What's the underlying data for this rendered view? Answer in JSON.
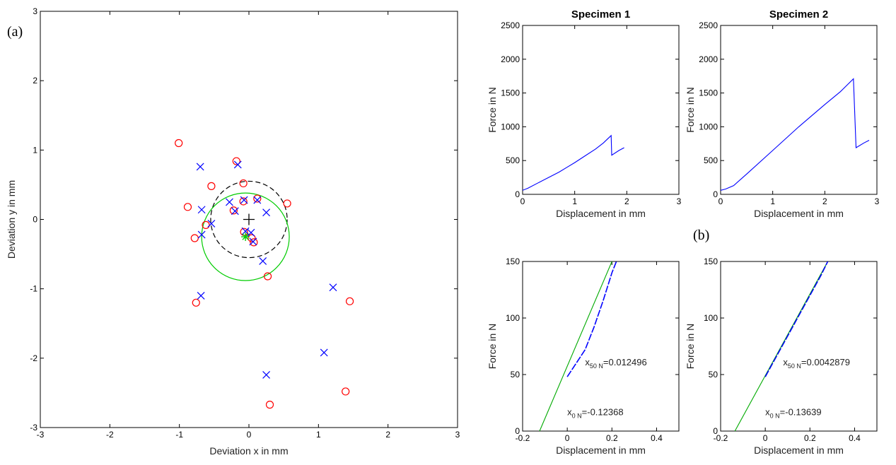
{
  "figure": {
    "panel_a_label": "(a)",
    "panel_b_label": "(b)"
  },
  "chart_data": [
    {
      "id": "deviation",
      "type": "scatter",
      "title": "",
      "xlabel": "Deviation x in mm",
      "ylabel": "Deviation y in mm",
      "xlim": [
        -3,
        3
      ],
      "ylim": [
        -3,
        3
      ],
      "xticks": [
        -3,
        -2,
        -1,
        0,
        1,
        2,
        3
      ],
      "yticks": [
        -3,
        -2,
        -1,
        0,
        1,
        2,
        3
      ],
      "grid": false,
      "series": [
        {
          "marker": "o",
          "color": "#ff0000",
          "points": [
            [
              -1.01,
              1.1
            ],
            [
              -0.18,
              0.84
            ],
            [
              -0.54,
              0.48
            ],
            [
              -0.08,
              0.52
            ],
            [
              -0.88,
              0.18
            ],
            [
              0.12,
              0.3
            ],
            [
              0.55,
              0.23
            ],
            [
              -0.08,
              0.26
            ],
            [
              -0.22,
              0.13
            ],
            [
              -0.62,
              -0.08
            ],
            [
              -0.78,
              -0.27
            ],
            [
              -0.07,
              -0.18
            ],
            [
              0.04,
              -0.27
            ],
            [
              0.07,
              -0.33
            ],
            [
              0.27,
              -0.82
            ],
            [
              -0.76,
              -1.2
            ],
            [
              1.45,
              -1.18
            ],
            [
              1.39,
              -2.48
            ],
            [
              0.3,
              -2.67
            ]
          ]
        },
        {
          "marker": "x",
          "color": "#0000ff",
          "points": [
            [
              -0.7,
              0.76
            ],
            [
              -0.16,
              0.79
            ],
            [
              -0.68,
              0.14
            ],
            [
              -0.28,
              0.25
            ],
            [
              -0.07,
              0.28
            ],
            [
              0.12,
              0.28
            ],
            [
              0.25,
              0.1
            ],
            [
              -0.2,
              0.12
            ],
            [
              -0.54,
              -0.06
            ],
            [
              -0.68,
              -0.22
            ],
            [
              -0.05,
              -0.17
            ],
            [
              0.03,
              -0.19
            ],
            [
              0.06,
              -0.32
            ],
            [
              0.2,
              -0.6
            ],
            [
              -0.69,
              -1.1
            ],
            [
              1.21,
              -0.98
            ],
            [
              1.08,
              -1.92
            ],
            [
              0.25,
              -2.24
            ]
          ]
        }
      ],
      "annotations": [
        {
          "type": "circle",
          "style": "dashed",
          "color": "#000000",
          "center": [
            0,
            0
          ],
          "radius": 0.55
        },
        {
          "type": "circle",
          "style": "solid",
          "color": "#00cc00",
          "center": [
            -0.05,
            -0.25
          ],
          "radius": 0.63
        },
        {
          "type": "marker",
          "marker": "+",
          "color": "#000000",
          "point": [
            0,
            0
          ]
        },
        {
          "type": "marker",
          "marker": "*",
          "color": "#00cc00",
          "point": [
            -0.05,
            -0.25
          ]
        }
      ]
    },
    {
      "id": "spec1-full",
      "type": "line",
      "title": "Specimen 1",
      "xlabel": "Displacement in mm",
      "ylabel": "Force in N",
      "xlim": [
        0,
        3
      ],
      "ylim": [
        0,
        2500
      ],
      "xticks": [
        0,
        1,
        2,
        3
      ],
      "yticks": [
        0,
        500,
        1000,
        1500,
        2000,
        2500
      ],
      "series": [
        {
          "color": "#0000ff",
          "points": [
            [
              0,
              60
            ],
            [
              0.1,
              90
            ],
            [
              0.3,
              170
            ],
            [
              0.5,
              250
            ],
            [
              0.7,
              330
            ],
            [
              0.85,
              400
            ],
            [
              1.0,
              470
            ],
            [
              1.2,
              570
            ],
            [
              1.4,
              670
            ],
            [
              1.55,
              760
            ],
            [
              1.7,
              870
            ],
            [
              1.71,
              580
            ],
            [
              1.85,
              650
            ],
            [
              1.95,
              690
            ]
          ]
        }
      ]
    },
    {
      "id": "spec2-full",
      "type": "line",
      "title": "Specimen 2",
      "xlabel": "Displacement in mm",
      "ylabel": "Force in N",
      "xlim": [
        0,
        3
      ],
      "ylim": [
        0,
        2500
      ],
      "xticks": [
        0,
        1,
        2,
        3
      ],
      "yticks": [
        0,
        500,
        1000,
        1500,
        2000,
        2500
      ],
      "series": [
        {
          "color": "#0000ff",
          "points": [
            [
              0,
              60
            ],
            [
              0.1,
              80
            ],
            [
              0.25,
              130
            ],
            [
              0.5,
              300
            ],
            [
              1.0,
              650
            ],
            [
              1.5,
              1000
            ],
            [
              2.0,
              1330
            ],
            [
              2.3,
              1520
            ],
            [
              2.55,
              1710
            ],
            [
              2.6,
              690
            ],
            [
              2.75,
              760
            ],
            [
              2.85,
              800
            ]
          ]
        }
      ]
    },
    {
      "id": "spec1-zoom",
      "type": "line",
      "title": "",
      "xlabel": "Displacement in mm",
      "ylabel": "Force in N",
      "xlim": [
        -0.2,
        0.5
      ],
      "ylim": [
        0,
        150
      ],
      "xticks": [
        -0.2,
        0,
        0.2,
        0.4
      ],
      "yticks": [
        0,
        50,
        100,
        150
      ],
      "series": [
        {
          "color": "#00aa00",
          "points": [
            [
              -0.124,
              0
            ],
            [
              0.2,
              150
            ]
          ]
        },
        {
          "color": "#0000ff",
          "style": "dashed",
          "points": [
            [
              0.0,
              48
            ],
            [
              0.04,
              60
            ],
            [
              0.08,
              72
            ],
            [
              0.12,
              92
            ],
            [
              0.16,
              115
            ],
            [
              0.2,
              140
            ],
            [
              0.22,
              150
            ]
          ]
        }
      ],
      "labels": [
        {
          "base": "x",
          "sub": "50 N",
          "value": "=0.012496",
          "at": [
            0.08,
            58
          ]
        },
        {
          "base": "x",
          "sub": "0 N",
          "value": "=-0.12368",
          "at": [
            0.0,
            14
          ]
        }
      ]
    },
    {
      "id": "spec2-zoom",
      "type": "line",
      "title": "",
      "xlabel": "Displacement in mm",
      "ylabel": "Force in N",
      "xlim": [
        -0.2,
        0.5
      ],
      "ylim": [
        0,
        150
      ],
      "xticks": [
        -0.2,
        0,
        0.2,
        0.4
      ],
      "yticks": [
        0,
        50,
        100,
        150
      ],
      "series": [
        {
          "color": "#00aa00",
          "points": [
            [
              -0.136,
              0
            ],
            [
              0.28,
              150
            ]
          ]
        },
        {
          "color": "#0000ff",
          "style": "dashed",
          "points": [
            [
              0.0,
              48
            ],
            [
              0.05,
              66
            ],
            [
              0.1,
              84
            ],
            [
              0.15,
              102
            ],
            [
              0.2,
              120
            ],
            [
              0.25,
              138
            ],
            [
              0.28,
              150
            ]
          ]
        }
      ],
      "labels": [
        {
          "base": "x",
          "sub": "50 N",
          "value": "=0.0042879",
          "at": [
            0.08,
            58
          ]
        },
        {
          "base": "x",
          "sub": "0 N",
          "value": "=-0.13639",
          "at": [
            0.0,
            14
          ]
        }
      ]
    }
  ]
}
